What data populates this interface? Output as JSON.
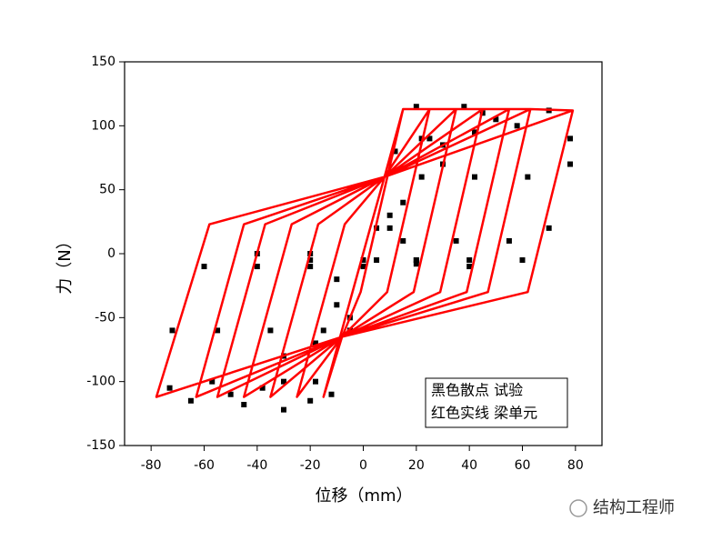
{
  "chart_data": {
    "type": "scatter",
    "xlabel": "位移（mm）",
    "ylabel": "力（N）",
    "xlim": [
      -90,
      90
    ],
    "ylim": [
      -150,
      150
    ],
    "xticks": [
      -80,
      -60,
      -40,
      -20,
      0,
      20,
      40,
      60,
      80
    ],
    "yticks": [
      -150,
      -100,
      -50,
      0,
      50,
      100,
      150
    ],
    "legend": "bottom-right",
    "series": [
      {
        "name": "黑色散点  试验",
        "type": "scatter",
        "color": "#000000",
        "x": [
          78,
          70,
          60,
          40,
          20,
          0,
          -20,
          -40,
          -60,
          -72,
          -73,
          -65,
          -50,
          -30,
          -10,
          10,
          30,
          50,
          70,
          78,
          62,
          55,
          40,
          20,
          0,
          -20,
          -40,
          -55,
          -57,
          -45,
          -30,
          -15,
          0,
          15,
          30,
          45,
          58,
          42,
          35,
          20,
          0,
          -20,
          -35,
          -38,
          -30,
          -18,
          -5,
          10,
          25,
          38,
          42,
          22,
          15,
          5,
          -10,
          -18,
          -20,
          -12,
          -5,
          5,
          12,
          20,
          22
        ],
        "y": [
          70,
          20,
          -5,
          -10,
          -8,
          -5,
          0,
          0,
          -10,
          -60,
          -105,
          -115,
          -110,
          -80,
          -40,
          20,
          70,
          105,
          112,
          90,
          60,
          10,
          -5,
          -5,
          -5,
          -5,
          -10,
          -60,
          -100,
          -118,
          -100,
          -60,
          -10,
          40,
          85,
          110,
          100,
          60,
          10,
          -5,
          -5,
          -10,
          -60,
          -105,
          -122,
          -100,
          -50,
          30,
          90,
          115,
          95,
          60,
          10,
          -5,
          -20,
          -70,
          -115,
          -110,
          -60,
          20,
          80,
          115,
          90
        ]
      },
      {
        "name": "红色实线  梁单元",
        "type": "line",
        "color": "#ff0000",
        "x": [
          15,
          -1,
          -8,
          -15,
          3,
          8,
          15,
          25,
          9,
          -8,
          -25,
          -7,
          8,
          25,
          35,
          19,
          -8,
          -35,
          -17,
          8,
          35,
          45,
          29,
          -8,
          -45,
          -27,
          8,
          45,
          55,
          39,
          -8,
          -55,
          -37,
          8,
          55,
          63,
          47,
          -8,
          -63,
          -45,
          8,
          63,
          79,
          62,
          -8,
          -78,
          -58,
          8,
          79
        ],
        "y": [
          113,
          -30,
          -65,
          -112,
          23,
          60,
          113,
          113,
          -30,
          -65,
          -112,
          23,
          60,
          113,
          113,
          -30,
          -65,
          -112,
          23,
          60,
          113,
          113,
          -30,
          -65,
          -112,
          23,
          60,
          113,
          113,
          -30,
          -65,
          -112,
          23,
          60,
          113,
          113,
          -30,
          -65,
          -112,
          23,
          60,
          113,
          112,
          -30,
          -65,
          -112,
          23,
          60,
          112
        ]
      }
    ]
  },
  "watermark": "结构工程师"
}
